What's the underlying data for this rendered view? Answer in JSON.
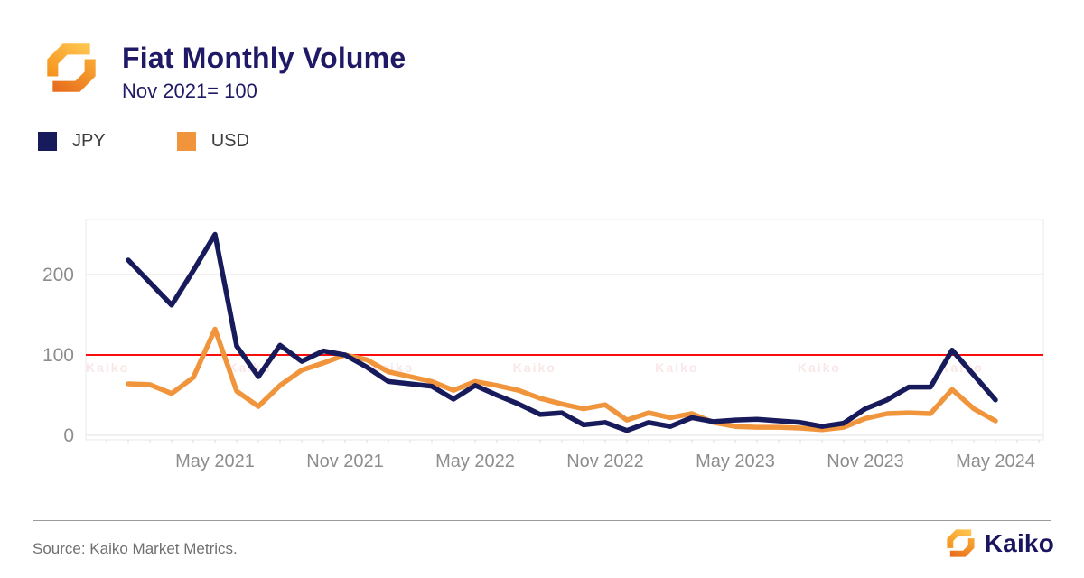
{
  "header": {
    "title": "Fiat Monthly Volume",
    "subtitle": "Nov 2021= 100"
  },
  "legend": [
    {
      "label": "JPY",
      "color": "#171A5B"
    },
    {
      "label": "USD",
      "color": "#F0953C"
    }
  ],
  "watermark_text": "Kaiko",
  "footer": {
    "source": "Source: Kaiko Market Metrics.",
    "brand": "Kaiko"
  },
  "chart_data": {
    "type": "line",
    "title": "Fiat Monthly Volume",
    "subtitle": "Nov 2021= 100",
    "x": [
      "Jan 2021",
      "Feb 2021",
      "Mar 2021",
      "Apr 2021",
      "May 2021",
      "Jun 2021",
      "Jul 2021",
      "Aug 2021",
      "Sep 2021",
      "Oct 2021",
      "Nov 2021",
      "Dec 2021",
      "Jan 2022",
      "Feb 2022",
      "Mar 2022",
      "Apr 2022",
      "May 2022",
      "Jun 2022",
      "Jul 2022",
      "Aug 2022",
      "Sep 2022",
      "Oct 2022",
      "Nov 2022",
      "Dec 2022",
      "Jan 2023",
      "Feb 2023",
      "Mar 2023",
      "Apr 2023",
      "May 2023",
      "Jun 2023",
      "Jul 2023",
      "Aug 2023",
      "Sep 2023",
      "Oct 2023",
      "Nov 2023",
      "Dec 2023",
      "Jan 2024",
      "Feb 2024",
      "Mar 2024",
      "Apr 2024",
      "May 2024"
    ],
    "series": [
      {
        "name": "JPY",
        "color": "#171A5B",
        "values": [
          218,
          190,
          162,
          205,
          250,
          111,
          73,
          112,
          92,
          105,
          100,
          85,
          67,
          64,
          61,
          45,
          62,
          50,
          39,
          26,
          28,
          13,
          16,
          6,
          16,
          11,
          22,
          17,
          19,
          20,
          18,
          16,
          11,
          15,
          33,
          44,
          60,
          60,
          106,
          75,
          44
        ]
      },
      {
        "name": "USD",
        "color": "#F0953C",
        "values": [
          64,
          63,
          52,
          72,
          132,
          55,
          36,
          62,
          81,
          90,
          100,
          94,
          79,
          73,
          67,
          56,
          67,
          62,
          56,
          46,
          39,
          33,
          38,
          19,
          28,
          22,
          27,
          16,
          11,
          10,
          10,
          9,
          7,
          10,
          21,
          27,
          28,
          27,
          57,
          33,
          18
        ]
      }
    ],
    "baseline": {
      "value": 100,
      "color": "#F90D0D"
    },
    "x_tick_labels": [
      "May 2021",
      "Nov 2021",
      "May 2022",
      "Nov 2022",
      "May 2023",
      "Nov 2023",
      "May 2024"
    ],
    "y_ticks": [
      0,
      100,
      200
    ],
    "ylim": [
      -6,
      268
    ],
    "grid": "horizontal",
    "legend_position": "top-left"
  }
}
